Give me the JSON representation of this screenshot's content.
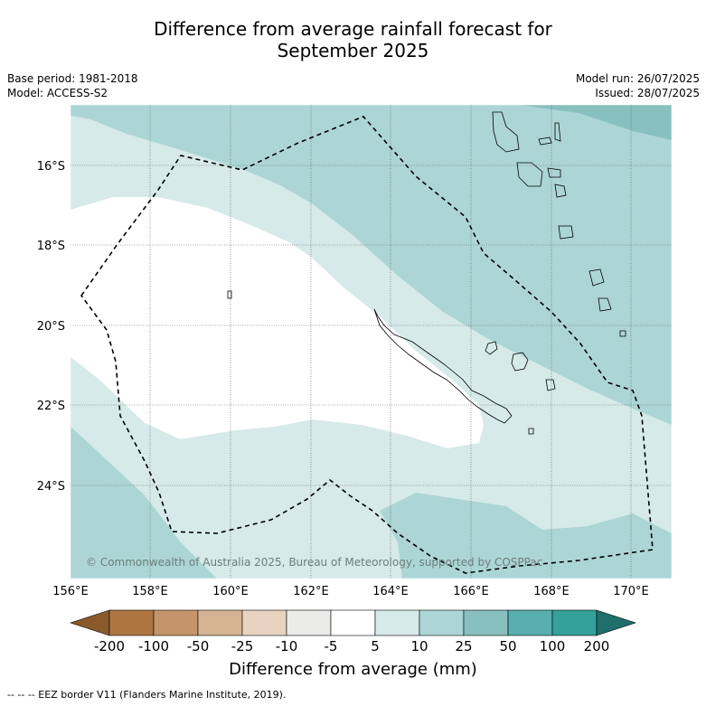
{
  "title": {
    "line1": "Difference from average rainfall forecast for",
    "line2": "September 2025"
  },
  "meta": {
    "base_period": "Base period: 1981-2018",
    "model": "Model: ACCESS-S2",
    "model_run": "Model run: 26/07/2025",
    "issued": "Issued: 28/07/2025"
  },
  "map": {
    "lat_labels": [
      "16°S",
      "18°S",
      "20°S",
      "22°S",
      "24°S"
    ],
    "lon_labels": [
      "156°E",
      "158°E",
      "160°E",
      "162°E",
      "164°E",
      "166°E",
      "168°E",
      "170°E"
    ],
    "credit": "© Commonwealth of Australia 2025, Bureau of Meteorology, supported by COSPPac",
    "gridlines": true
  },
  "colorbar": {
    "labels": [
      "-200",
      "-100",
      "-50",
      "-25",
      "-10",
      "-5",
      "5",
      "10",
      "25",
      "50",
      "100",
      "200"
    ],
    "colors": [
      "#8a5a2b",
      "#ad7640",
      "#c4956a",
      "#d6b392",
      "#e7d3c0",
      "#ebebe9",
      "#ffffff",
      "#d6eae9",
      "#acd6d5",
      "#87c0bf",
      "#59aeae",
      "#34a19b",
      "#1f6f6b"
    ],
    "title": "Difference from average (mm)"
  },
  "legend_footnote": "--  --  -- EEZ border V11 (Flanders Marine Institute, 2019)."
}
